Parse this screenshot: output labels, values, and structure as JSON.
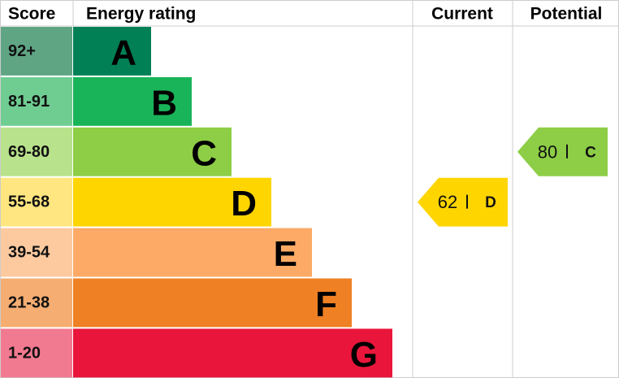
{
  "header": {
    "score": "Score",
    "rating": "Energy rating",
    "current": "Current",
    "potential": "Potential"
  },
  "bands": [
    {
      "score": "92+",
      "letter": "A",
      "color": "#008054",
      "tint": "#5fa584"
    },
    {
      "score": "81-91",
      "letter": "B",
      "color": "#19b459",
      "tint": "#6fcd92"
    },
    {
      "score": "69-80",
      "letter": "C",
      "color": "#8dce46",
      "tint": "#b9e28c"
    },
    {
      "score": "55-68",
      "letter": "D",
      "color": "#ffd500",
      "tint": "#ffe680"
    },
    {
      "score": "39-54",
      "letter": "E",
      "color": "#fcaa65",
      "tint": "#fdcaa0"
    },
    {
      "score": "21-38",
      "letter": "F",
      "color": "#ef8023",
      "tint": "#f5ad72"
    },
    {
      "score": "1-20",
      "letter": "G",
      "color": "#e9153b",
      "tint": "#f27a90"
    }
  ],
  "current": {
    "score": "62",
    "letter": "D"
  },
  "potential": {
    "score": "80",
    "letter": "C"
  }
}
